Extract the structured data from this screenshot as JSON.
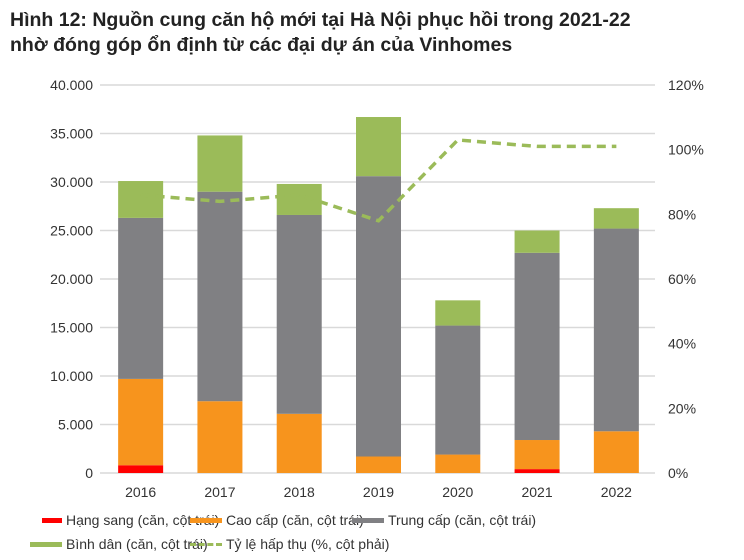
{
  "chart_data": {
    "type": "bar",
    "stacked": true,
    "title": "Hình 12: Nguồn cung căn hộ mới tại Hà Nội phục hồi trong 2021-22 nhờ đóng góp ổn định từ các đại dự án của Vinhomes",
    "title_lines": [
      "Hình 12: Nguồn cung căn hộ mới tại Hà Nội phục hồi trong 2021-22",
      "nhờ đóng góp ổn định từ các đại dự án của Vinhomes"
    ],
    "categories": [
      "2016",
      "2017",
      "2018",
      "2019",
      "2020",
      "2021",
      "2022"
    ],
    "series": [
      {
        "name": "Hạng sang (căn, cột trái)",
        "color": "#ff0000",
        "axis": "left",
        "values": [
          800,
          0,
          0,
          0,
          0,
          400,
          0
        ]
      },
      {
        "name": "Cao cấp (căn, cột trái)",
        "color": "#f7941d",
        "axis": "left",
        "values": [
          8900,
          7400,
          6100,
          1700,
          1900,
          3000,
          4300
        ]
      },
      {
        "name": "Trung cấp (căn, cột trái)",
        "color": "#808083",
        "axis": "left",
        "values": [
          16600,
          21600,
          20500,
          28900,
          13300,
          19300,
          20900
        ]
      },
      {
        "name": "Bình dân (căn, cột trái)",
        "color": "#9bbb59",
        "axis": "left",
        "values": [
          3800,
          5800,
          3200,
          6100,
          2600,
          2300,
          2100
        ]
      },
      {
        "name": "Tỷ lệ hấp thụ (%, cột phải)",
        "color": "#9bbb59",
        "axis": "right",
        "type": "line",
        "style": "dashed",
        "values": [
          86,
          84,
          86,
          78,
          103,
          101,
          101
        ]
      }
    ],
    "y_left": {
      "min": 0,
      "max": 40000,
      "ticks": [
        "0",
        "5.000",
        "10.000",
        "15.000",
        "20.000",
        "25.000",
        "30.000",
        "35.000",
        "40.000"
      ]
    },
    "y_right": {
      "min": 0,
      "max": 120,
      "ticks": [
        "0%",
        "20%",
        "40%",
        "60%",
        "80%",
        "100%",
        "120%"
      ]
    },
    "grid": true,
    "legend_position": "bottom"
  }
}
